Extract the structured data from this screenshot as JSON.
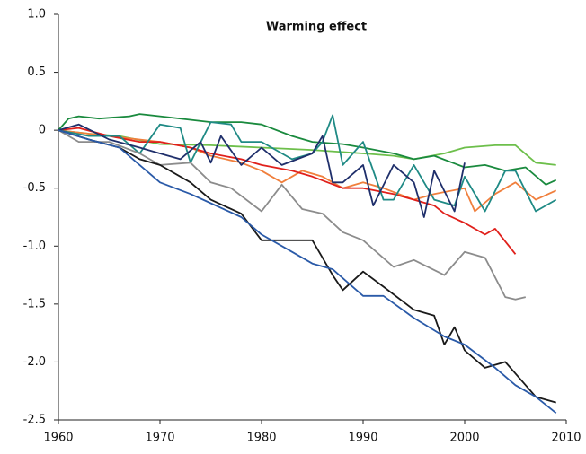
{
  "chart_data": {
    "type": "line",
    "title": "Warming effect",
    "xlim": [
      1960,
      2010
    ],
    "xticks": [
      1960,
      1970,
      1980,
      1990,
      2000,
      2010
    ],
    "ylim": [
      -2.5,
      1.0
    ],
    "yticks": [
      {
        "value": 1.0,
        "label": "1.0"
      },
      0.5,
      0,
      -0.5,
      {
        "value": -1.0,
        "label": "-1.0"
      },
      -1.5,
      {
        "value": -2.0,
        "label": "-2.0"
      },
      -2.5
    ],
    "grid": false,
    "series": [
      {
        "color": "#6dbf4b",
        "x": [
          1960,
          1963,
          1966,
          1970,
          1975,
          1980,
          1985,
          1990,
          1993,
          1995,
          1998,
          2000,
          2003,
          2005,
          2007,
          2009
        ],
        "values": [
          0,
          -0.03,
          -0.05,
          -0.12,
          -0.13,
          -0.15,
          -0.17,
          -0.2,
          -0.22,
          -0.25,
          -0.2,
          -0.15,
          -0.13,
          -0.13,
          -0.28,
          -0.3
        ]
      },
      {
        "color": "#1a8a3e",
        "x": [
          1960,
          1961,
          1962,
          1964,
          1967,
          1968,
          1970,
          1975,
          1978,
          1980,
          1983,
          1985,
          1988,
          1990,
          1993,
          1995,
          1997,
          2000,
          2002,
          2004,
          2006,
          2008,
          2009
        ],
        "values": [
          0,
          0.1,
          0.12,
          0.1,
          0.12,
          0.14,
          0.12,
          0.07,
          0.07,
          0.05,
          -0.05,
          -0.1,
          -0.12,
          -0.15,
          -0.2,
          -0.25,
          -0.22,
          -0.32,
          -0.3,
          -0.35,
          -0.32,
          -0.47,
          -0.43
        ]
      },
      {
        "color": "#f07f3c",
        "x": [
          1960,
          1965,
          1970,
          1973,
          1975,
          1978,
          1980,
          1982,
          1984,
          1986,
          1988,
          1990,
          1992,
          1995,
          1997,
          2000,
          2001,
          2003,
          2005,
          2007,
          2009
        ],
        "values": [
          0,
          -0.05,
          -0.1,
          -0.15,
          -0.22,
          -0.28,
          -0.35,
          -0.45,
          -0.35,
          -0.4,
          -0.5,
          -0.45,
          -0.5,
          -0.6,
          -0.55,
          -0.5,
          -0.7,
          -0.55,
          -0.45,
          -0.6,
          -0.52
        ]
      },
      {
        "color": "#e0201b",
        "x": [
          1960,
          1962,
          1965,
          1968,
          1970,
          1973,
          1975,
          1978,
          1980,
          1983,
          1985,
          1988,
          1990,
          1993,
          1995,
          1997,
          1998,
          2000,
          2002,
          2003,
          2005
        ],
        "values": [
          0,
          0.02,
          -0.05,
          -0.1,
          -0.1,
          -0.15,
          -0.2,
          -0.25,
          -0.3,
          -0.35,
          -0.4,
          -0.5,
          -0.5,
          -0.55,
          -0.6,
          -0.65,
          -0.72,
          -0.8,
          -0.9,
          -0.85,
          -1.07
        ]
      },
      {
        "color": "#1f8a85",
        "x": [
          1960,
          1963,
          1966,
          1968,
          1970,
          1972,
          1973,
          1975,
          1977,
          1978,
          1980,
          1983,
          1985,
          1986,
          1987,
          1988,
          1990,
          1992,
          1993,
          1995,
          1997,
          1999,
          2000,
          2002,
          2004,
          2005,
          2007,
          2009
        ],
        "values": [
          0,
          -0.05,
          -0.05,
          -0.2,
          0.05,
          0.02,
          -0.28,
          0.07,
          0.05,
          -0.1,
          -0.1,
          -0.25,
          -0.2,
          -0.1,
          0.13,
          -0.3,
          -0.1,
          -0.6,
          -0.6,
          -0.3,
          -0.6,
          -0.65,
          -0.4,
          -0.7,
          -0.35,
          -0.35,
          -0.7,
          -0.6
        ]
      },
      {
        "color": "#1f2f6b",
        "x": [
          1960,
          1962,
          1965,
          1968,
          1970,
          1972,
          1974,
          1975,
          1976,
          1978,
          1980,
          1982,
          1985,
          1986,
          1987,
          1988,
          1990,
          1991,
          1993,
          1995,
          1996,
          1997,
          1999,
          2000
        ],
        "values": [
          0,
          0.05,
          -0.08,
          -0.15,
          -0.2,
          -0.25,
          -0.1,
          -0.28,
          -0.05,
          -0.3,
          -0.15,
          -0.3,
          -0.2,
          -0.05,
          -0.45,
          -0.45,
          -0.3,
          -0.65,
          -0.3,
          -0.45,
          -0.75,
          -0.35,
          -0.7,
          -0.28
        ]
      },
      {
        "color": "#8c8c8c",
        "x": [
          1960,
          1962,
          1965,
          1968,
          1970,
          1973,
          1975,
          1977,
          1980,
          1982,
          1984,
          1986,
          1988,
          1990,
          1993,
          1995,
          1998,
          2000,
          2002,
          2004,
          2005,
          2006
        ],
        "values": [
          0,
          -0.1,
          -0.1,
          -0.2,
          -0.3,
          -0.28,
          -0.45,
          -0.5,
          -0.7,
          -0.47,
          -0.68,
          -0.72,
          -0.88,
          -0.95,
          -1.18,
          -1.12,
          -1.25,
          -1.05,
          -1.1,
          -1.44,
          -1.46,
          -1.44
        ]
      },
      {
        "color": "#1a1a1a",
        "x": [
          1960,
          1963,
          1966,
          1968,
          1970,
          1973,
          1975,
          1978,
          1980,
          1982,
          1985,
          1987,
          1988,
          1990,
          1992,
          1995,
          1997,
          1998,
          1999,
          2000,
          2002,
          2004,
          2005,
          2007,
          2009
        ],
        "values": [
          0,
          -0.08,
          -0.15,
          -0.25,
          -0.3,
          -0.45,
          -0.6,
          -0.72,
          -0.95,
          -0.95,
          -0.95,
          -1.25,
          -1.38,
          -1.22,
          -1.35,
          -1.55,
          -1.6,
          -1.85,
          -1.7,
          -1.9,
          -2.05,
          -2.0,
          -2.1,
          -2.3,
          -2.35
        ]
      },
      {
        "color": "#2a5aa8",
        "x": [
          1960,
          1963,
          1966,
          1968,
          1970,
          1973,
          1975,
          1978,
          1980,
          1983,
          1985,
          1987,
          1990,
          1992,
          1995,
          1998,
          2000,
          2003,
          2005,
          2007,
          2009
        ],
        "values": [
          0,
          -0.08,
          -0.15,
          -0.3,
          -0.45,
          -0.55,
          -0.63,
          -0.75,
          -0.9,
          -1.05,
          -1.15,
          -1.2,
          -1.43,
          -1.43,
          -1.62,
          -1.78,
          -1.85,
          -2.05,
          -2.2,
          -2.3,
          -2.44
        ]
      }
    ]
  }
}
